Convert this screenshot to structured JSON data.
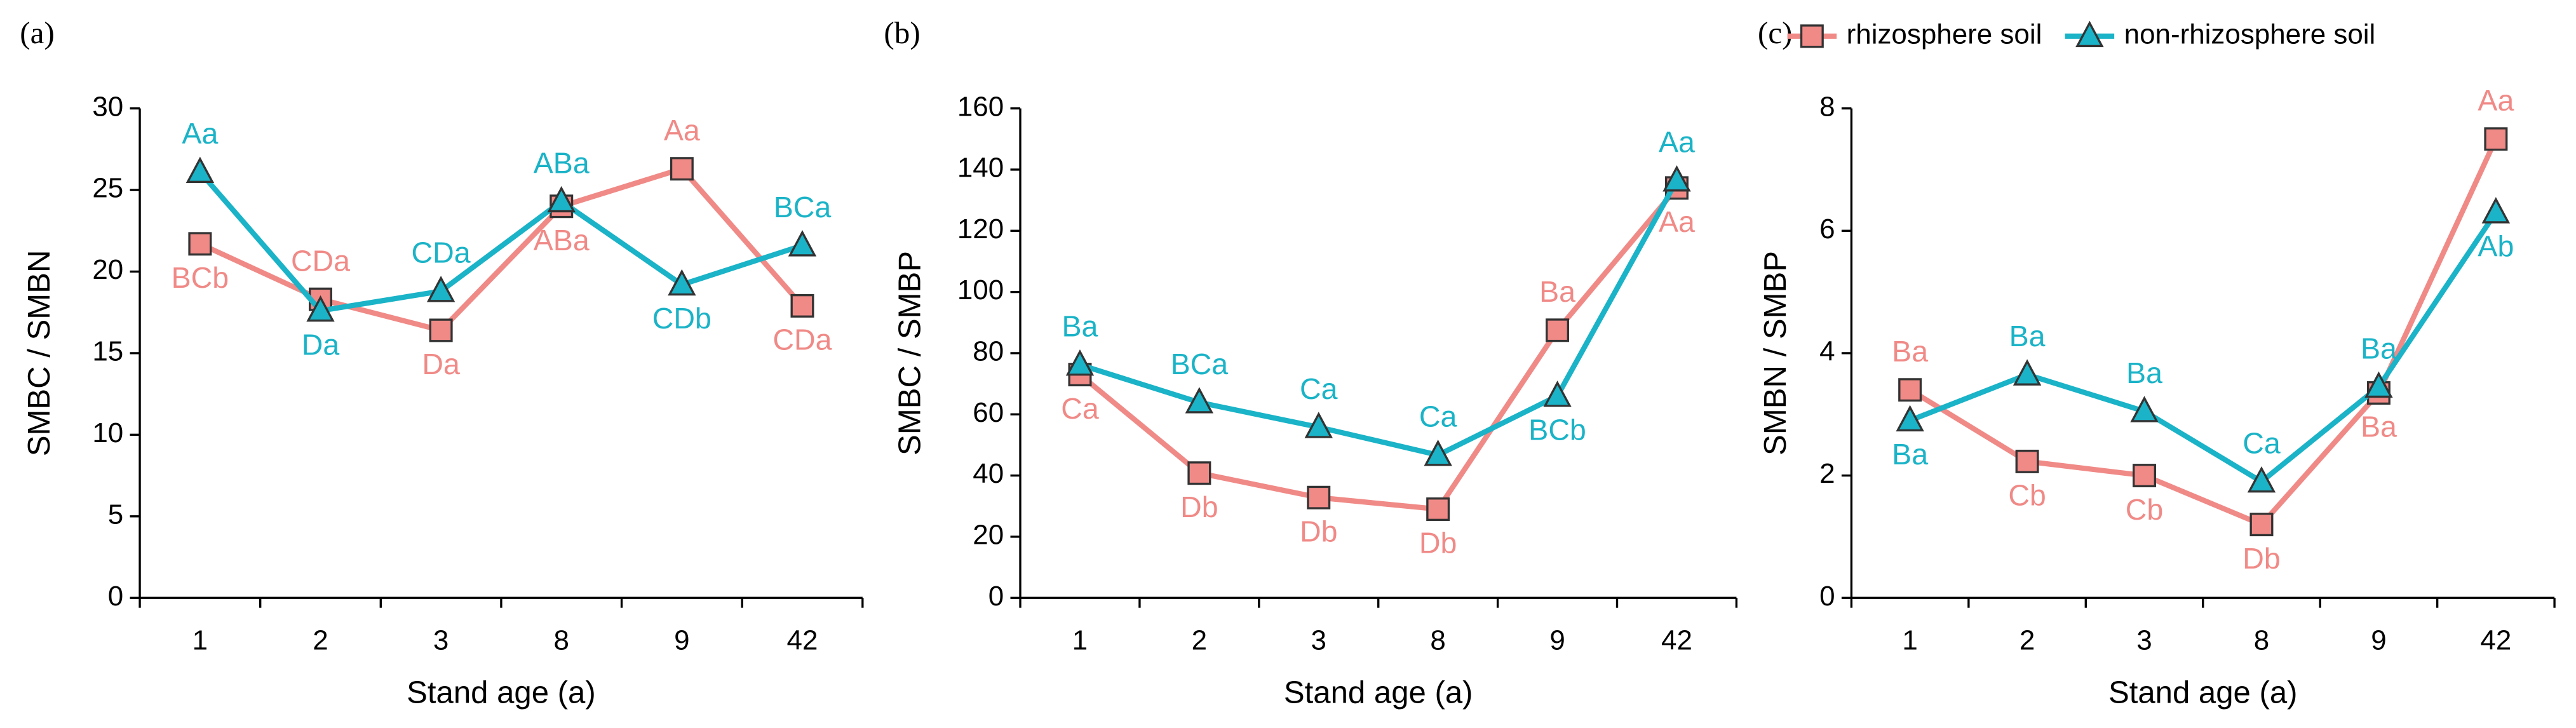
{
  "chart_data": [
    {
      "type": "line",
      "title": "(a)",
      "categories": [
        "1",
        "2",
        "3",
        "8",
        "9",
        "42"
      ],
      "x_label": "Stand age (a)",
      "y_label": "SMBC / SMBN",
      "ylim": [
        0,
        30
      ],
      "yticks": [
        0,
        5,
        10,
        15,
        20,
        25,
        30
      ],
      "series": [
        {
          "color": "#f08a87",
          "marker": "square",
          "values": [
            21.7,
            18.3,
            16.4,
            24.0,
            26.3,
            17.9
          ],
          "annotations": [
            "BCb",
            "CDa",
            "Da",
            "ABa",
            "Aa",
            "CDa"
          ]
        },
        {
          "color": "#1ab3c7",
          "marker": "triangle",
          "values": [
            26.1,
            17.6,
            18.8,
            24.3,
            19.2,
            21.6
          ],
          "annotations": [
            "Aa",
            "Da",
            "CDa",
            "ABa",
            "CDb",
            "BCa"
          ]
        }
      ]
    },
    {
      "type": "line",
      "title": "(b)",
      "categories": [
        "1",
        "2",
        "3",
        "8",
        "9",
        "42"
      ],
      "x_label": "Stand age (a)",
      "y_label": "SMBC / SMBP",
      "ylim": [
        0,
        160
      ],
      "yticks": [
        0,
        20,
        40,
        60,
        80,
        100,
        120,
        140,
        160
      ],
      "series": [
        {
          "color": "#f08a87",
          "marker": "square",
          "values": [
            73,
            40.8,
            32.8,
            29,
            87.5,
            134
          ],
          "annotations": [
            "Ca",
            "Db",
            "Db",
            "Db",
            "Ba",
            "Aa"
          ]
        },
        {
          "color": "#1ab3c7",
          "marker": "triangle",
          "values": [
            76.2,
            63.9,
            55.8,
            46.7,
            66,
            136.4
          ],
          "annotations": [
            "Ba",
            "BCa",
            "Ca",
            "Ca",
            "BCb",
            "Aa"
          ]
        }
      ]
    },
    {
      "type": "line",
      "title": "(c)",
      "categories": [
        "1",
        "2",
        "3",
        "8",
        "9",
        "42"
      ],
      "x_label": "Stand age (a)",
      "y_label": "SMBN / SMBP",
      "ylim": [
        0,
        8
      ],
      "yticks": [
        0,
        2,
        4,
        6,
        8
      ],
      "legend": "top-right",
      "series": [
        {
          "name": "rhizosphere soil",
          "color": "#f08a87",
          "marker": "square",
          "values": [
            3.4,
            2.23,
            2.0,
            1.2,
            3.35,
            7.5
          ],
          "annotations": [
            "Ba",
            "Cb",
            "Cb",
            "Db",
            "Ba",
            "Aa"
          ]
        },
        {
          "name": "non-rhizosphere soil",
          "color": "#1ab3c7",
          "marker": "triangle",
          "values": [
            2.9,
            3.65,
            3.05,
            1.9,
            3.45,
            6.3
          ],
          "annotations": [
            "Ba",
            "Ba",
            "Ba",
            "Ca",
            "Ba",
            "Ab"
          ]
        }
      ]
    }
  ]
}
